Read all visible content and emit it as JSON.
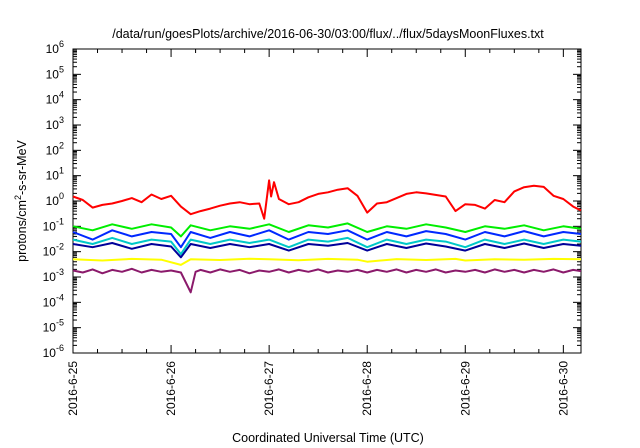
{
  "chart_data": {
    "type": "line",
    "title": "/data/run/goesPlots/archive/2016-06-30/03:00/flux/../flux/5daysMoonFluxes.txt",
    "xlabel": "Coordinated Universal Time (UTC)",
    "ylabel_parts": [
      "protons/cm",
      "2",
      "-s-sr-MeV"
    ],
    "yscale": "log",
    "ylim_exp": [
      -6,
      6
    ],
    "ytick_labels": [
      {
        "exp": -6,
        "base": "10",
        "sup": "-6"
      },
      {
        "exp": -5,
        "base": "10",
        "sup": "-5"
      },
      {
        "exp": -4,
        "base": "10",
        "sup": "-4"
      },
      {
        "exp": -3,
        "base": "10",
        "sup": "-3"
      },
      {
        "exp": -2,
        "base": "10",
        "sup": "-2"
      },
      {
        "exp": -1,
        "base": "10",
        "sup": "-1"
      },
      {
        "exp": 0,
        "base": "10",
        "sup": "0"
      },
      {
        "exp": 1,
        "base": "10",
        "sup": "1"
      },
      {
        "exp": 2,
        "base": "10",
        "sup": "2"
      },
      {
        "exp": 3,
        "base": "10",
        "sup": "3"
      },
      {
        "exp": 4,
        "base": "10",
        "sup": "4"
      },
      {
        "exp": 5,
        "base": "10",
        "sup": "5"
      },
      {
        "exp": 6,
        "base": "10",
        "sup": "6"
      }
    ],
    "xlim_days": [
      0,
      5.18
    ],
    "xticks": [
      {
        "day": 0,
        "label": "2016-6-25"
      },
      {
        "day": 1,
        "label": "2016-6-26"
      },
      {
        "day": 2,
        "label": "2016-6-27"
      },
      {
        "day": 3,
        "label": "2016-6-28"
      },
      {
        "day": 4,
        "label": "2016-6-29"
      },
      {
        "day": 5,
        "label": "2016-6-30"
      }
    ],
    "grid": false,
    "series": [
      {
        "color": "#ff0000",
        "points": [
          [
            0,
            1.5
          ],
          [
            0.1,
            1.1
          ],
          [
            0.2,
            0.55
          ],
          [
            0.3,
            0.7
          ],
          [
            0.4,
            0.8
          ],
          [
            0.5,
            1.0
          ],
          [
            0.6,
            1.3
          ],
          [
            0.7,
            0.9
          ],
          [
            0.8,
            1.8
          ],
          [
            0.9,
            1.2
          ],
          [
            1.0,
            1.6
          ],
          [
            1.1,
            0.6
          ],
          [
            1.2,
            0.3
          ],
          [
            1.3,
            0.4
          ],
          [
            1.4,
            0.5
          ],
          [
            1.5,
            0.65
          ],
          [
            1.6,
            0.8
          ],
          [
            1.7,
            0.9
          ],
          [
            1.8,
            0.75
          ],
          [
            1.9,
            0.8
          ],
          [
            1.95,
            0.2
          ],
          [
            2.0,
            6.5
          ],
          [
            2.02,
            1.5
          ],
          [
            2.05,
            5.5
          ],
          [
            2.1,
            1.2
          ],
          [
            2.2,
            0.75
          ],
          [
            2.3,
            0.9
          ],
          [
            2.4,
            1.4
          ],
          [
            2.5,
            1.9
          ],
          [
            2.6,
            2.2
          ],
          [
            2.7,
            2.8
          ],
          [
            2.8,
            3.2
          ],
          [
            2.9,
            1.6
          ],
          [
            3.0,
            0.35
          ],
          [
            3.1,
            0.8
          ],
          [
            3.2,
            0.9
          ],
          [
            3.4,
            1.9
          ],
          [
            3.5,
            2.2
          ],
          [
            3.6,
            2.0
          ],
          [
            3.8,
            1.5
          ],
          [
            3.9,
            0.4
          ],
          [
            4.0,
            0.75
          ],
          [
            4.1,
            0.7
          ],
          [
            4.2,
            0.5
          ],
          [
            4.3,
            1.1
          ],
          [
            4.4,
            0.9
          ],
          [
            4.5,
            2.4
          ],
          [
            4.6,
            3.5
          ],
          [
            4.7,
            4.0
          ],
          [
            4.8,
            3.6
          ],
          [
            4.9,
            1.6
          ],
          [
            5.0,
            1.2
          ],
          [
            5.1,
            0.6
          ],
          [
            5.18,
            0.42
          ]
        ]
      },
      {
        "color": "#00ee00",
        "points": [
          [
            0,
            0.1
          ],
          [
            0.2,
            0.07
          ],
          [
            0.4,
            0.12
          ],
          [
            0.6,
            0.08
          ],
          [
            0.8,
            0.12
          ],
          [
            1.0,
            0.09
          ],
          [
            1.1,
            0.04
          ],
          [
            1.2,
            0.11
          ],
          [
            1.4,
            0.07
          ],
          [
            1.6,
            0.1
          ],
          [
            1.8,
            0.08
          ],
          [
            2.0,
            0.12
          ],
          [
            2.2,
            0.06
          ],
          [
            2.4,
            0.11
          ],
          [
            2.6,
            0.09
          ],
          [
            2.8,
            0.13
          ],
          [
            3.0,
            0.06
          ],
          [
            3.2,
            0.1
          ],
          [
            3.4,
            0.08
          ],
          [
            3.6,
            0.12
          ],
          [
            3.8,
            0.09
          ],
          [
            4.0,
            0.06
          ],
          [
            4.2,
            0.1
          ],
          [
            4.4,
            0.08
          ],
          [
            4.6,
            0.11
          ],
          [
            4.8,
            0.07
          ],
          [
            5.0,
            0.1
          ],
          [
            5.18,
            0.08
          ]
        ]
      },
      {
        "color": "#00c8c8",
        "points": [
          [
            0,
            0.03
          ],
          [
            0.2,
            0.02
          ],
          [
            0.4,
            0.035
          ],
          [
            0.6,
            0.02
          ],
          [
            0.8,
            0.03
          ],
          [
            1.0,
            0.025
          ],
          [
            1.1,
            0.008
          ],
          [
            1.2,
            0.03
          ],
          [
            1.4,
            0.02
          ],
          [
            1.6,
            0.03
          ],
          [
            1.8,
            0.022
          ],
          [
            2.0,
            0.03
          ],
          [
            2.2,
            0.015
          ],
          [
            2.4,
            0.03
          ],
          [
            2.6,
            0.025
          ],
          [
            2.8,
            0.035
          ],
          [
            3.0,
            0.015
          ],
          [
            3.2,
            0.03
          ],
          [
            3.4,
            0.02
          ],
          [
            3.6,
            0.03
          ],
          [
            3.8,
            0.025
          ],
          [
            4.0,
            0.015
          ],
          [
            4.2,
            0.03
          ],
          [
            4.4,
            0.02
          ],
          [
            4.6,
            0.03
          ],
          [
            4.8,
            0.02
          ],
          [
            5.0,
            0.03
          ],
          [
            5.18,
            0.025
          ]
        ]
      },
      {
        "color": "#0028ff",
        "points": [
          [
            0,
            0.06
          ],
          [
            0.2,
            0.03
          ],
          [
            0.4,
            0.07
          ],
          [
            0.6,
            0.04
          ],
          [
            0.8,
            0.06
          ],
          [
            1.0,
            0.05
          ],
          [
            1.1,
            0.015
          ],
          [
            1.2,
            0.06
          ],
          [
            1.4,
            0.035
          ],
          [
            1.6,
            0.06
          ],
          [
            1.8,
            0.04
          ],
          [
            2.0,
            0.07
          ],
          [
            2.2,
            0.03
          ],
          [
            2.4,
            0.06
          ],
          [
            2.6,
            0.05
          ],
          [
            2.8,
            0.07
          ],
          [
            3.0,
            0.03
          ],
          [
            3.2,
            0.06
          ],
          [
            3.4,
            0.04
          ],
          [
            3.6,
            0.065
          ],
          [
            3.8,
            0.05
          ],
          [
            4.0,
            0.03
          ],
          [
            4.2,
            0.06
          ],
          [
            4.4,
            0.04
          ],
          [
            4.6,
            0.065
          ],
          [
            4.8,
            0.04
          ],
          [
            5.0,
            0.06
          ],
          [
            5.18,
            0.05
          ]
        ]
      },
      {
        "color": "#000099",
        "points": [
          [
            0,
            0.02
          ],
          [
            0.2,
            0.015
          ],
          [
            0.4,
            0.022
          ],
          [
            0.6,
            0.013
          ],
          [
            0.8,
            0.02
          ],
          [
            1.0,
            0.016
          ],
          [
            1.1,
            0.006
          ],
          [
            1.2,
            0.02
          ],
          [
            1.4,
            0.014
          ],
          [
            1.6,
            0.02
          ],
          [
            1.8,
            0.015
          ],
          [
            2.0,
            0.02
          ],
          [
            2.2,
            0.011
          ],
          [
            2.4,
            0.02
          ],
          [
            2.6,
            0.017
          ],
          [
            2.8,
            0.022
          ],
          [
            3.0,
            0.011
          ],
          [
            3.2,
            0.02
          ],
          [
            3.4,
            0.014
          ],
          [
            3.6,
            0.021
          ],
          [
            3.8,
            0.016
          ],
          [
            4.0,
            0.011
          ],
          [
            4.2,
            0.02
          ],
          [
            4.4,
            0.014
          ],
          [
            4.6,
            0.021
          ],
          [
            4.8,
            0.014
          ],
          [
            5.0,
            0.02
          ],
          [
            5.18,
            0.017
          ]
        ]
      },
      {
        "color": "#ffff00",
        "points": [
          [
            0,
            0.005
          ],
          [
            0.3,
            0.0045
          ],
          [
            0.6,
            0.0052
          ],
          [
            0.9,
            0.0048
          ],
          [
            1.1,
            0.003
          ],
          [
            1.2,
            0.005
          ],
          [
            1.5,
            0.0047
          ],
          [
            1.8,
            0.0053
          ],
          [
            2.0,
            0.005
          ],
          [
            2.3,
            0.0046
          ],
          [
            2.6,
            0.0052
          ],
          [
            2.9,
            0.0048
          ],
          [
            3.0,
            0.004
          ],
          [
            3.3,
            0.0051
          ],
          [
            3.6,
            0.0047
          ],
          [
            3.9,
            0.0052
          ],
          [
            4.0,
            0.0045
          ],
          [
            4.3,
            0.005
          ],
          [
            4.6,
            0.0048
          ],
          [
            4.9,
            0.0052
          ],
          [
            5.18,
            0.005
          ]
        ]
      },
      {
        "color": "#8b1a6b",
        "points": [
          [
            0,
            0.0018
          ],
          [
            0.1,
            0.0015
          ],
          [
            0.2,
            0.002
          ],
          [
            0.3,
            0.0014
          ],
          [
            0.4,
            0.0019
          ],
          [
            0.5,
            0.0016
          ],
          [
            0.6,
            0.0021
          ],
          [
            0.7,
            0.0015
          ],
          [
            0.8,
            0.0019
          ],
          [
            0.9,
            0.0016
          ],
          [
            1.0,
            0.0018
          ],
          [
            1.1,
            0.0015
          ],
          [
            1.2,
            0.00025
          ],
          [
            1.25,
            0.0016
          ],
          [
            1.3,
            0.0019
          ],
          [
            1.4,
            0.0015
          ],
          [
            1.5,
            0.002
          ],
          [
            1.6,
            0.0016
          ],
          [
            1.7,
            0.0019
          ],
          [
            1.8,
            0.0014
          ],
          [
            1.9,
            0.0018
          ],
          [
            2.0,
            0.0016
          ],
          [
            2.1,
            0.002
          ],
          [
            2.2,
            0.0015
          ],
          [
            2.3,
            0.0019
          ],
          [
            2.4,
            0.0016
          ],
          [
            2.5,
            0.002
          ],
          [
            2.6,
            0.0015
          ],
          [
            2.7,
            0.0018
          ],
          [
            2.8,
            0.0016
          ],
          [
            2.9,
            0.0019
          ],
          [
            3.0,
            0.0015
          ],
          [
            3.1,
            0.0019
          ],
          [
            3.2,
            0.0016
          ],
          [
            3.3,
            0.002
          ],
          [
            3.4,
            0.0015
          ],
          [
            3.5,
            0.0019
          ],
          [
            3.6,
            0.0016
          ],
          [
            3.7,
            0.002
          ],
          [
            3.8,
            0.0015
          ],
          [
            3.9,
            0.0018
          ],
          [
            4.0,
            0.0016
          ],
          [
            4.1,
            0.0019
          ],
          [
            4.2,
            0.0015
          ],
          [
            4.3,
            0.002
          ],
          [
            4.4,
            0.0016
          ],
          [
            4.5,
            0.0019
          ],
          [
            4.6,
            0.0015
          ],
          [
            4.7,
            0.0019
          ],
          [
            4.8,
            0.0016
          ],
          [
            4.9,
            0.002
          ],
          [
            5.0,
            0.0015
          ],
          [
            5.1,
            0.0019
          ],
          [
            5.18,
            0.0017
          ]
        ]
      }
    ]
  }
}
